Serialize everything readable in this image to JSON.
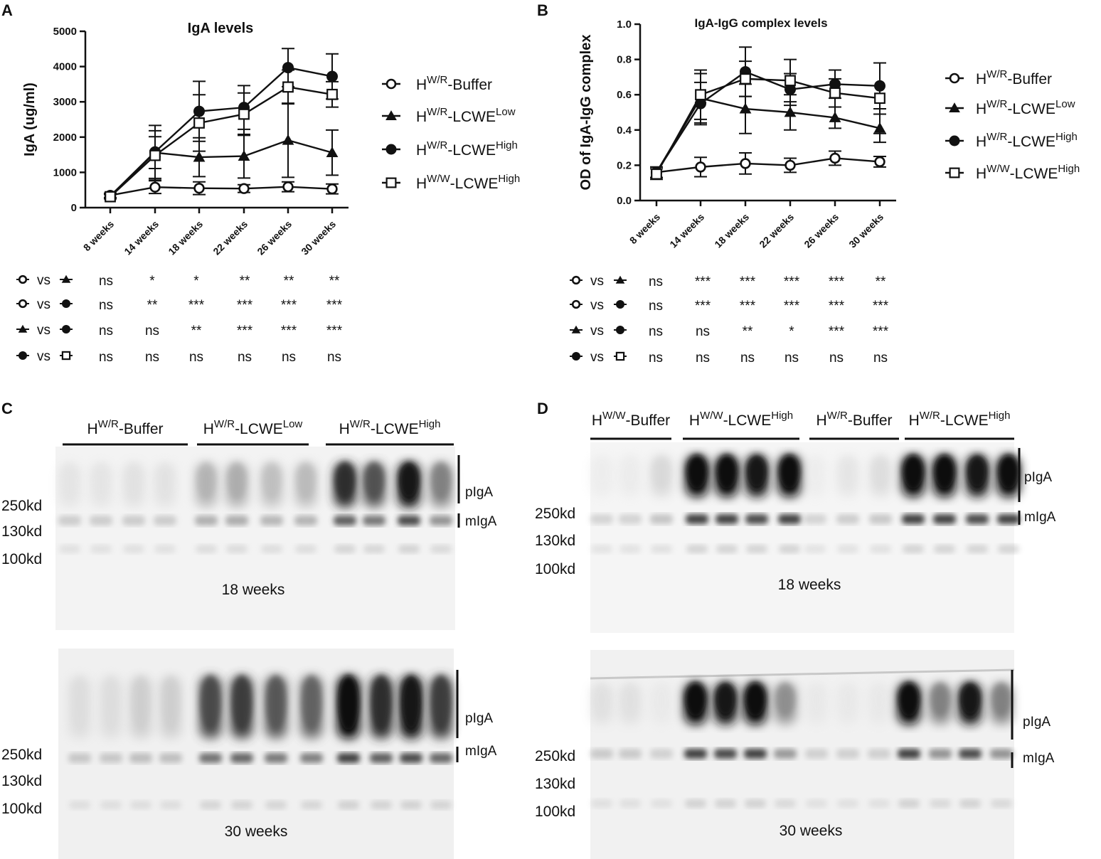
{
  "panels": {
    "A": {
      "letter": "A"
    },
    "B": {
      "letter": "B"
    },
    "C": {
      "letter": "C"
    },
    "D": {
      "letter": "D"
    }
  },
  "chart_data": [
    {
      "id": "A",
      "type": "line",
      "title": "IgA levels",
      "ylabel": "IgA (ug/ml)",
      "xlabel": "",
      "categories": [
        "8 weeks",
        "14 weeks",
        "18 weeks",
        "22 weeks",
        "26 weeks",
        "30 weeks"
      ],
      "ylim": [
        0,
        5000
      ],
      "yticks": [
        "0",
        "1000",
        "2000",
        "3000",
        "4000",
        "5000"
      ],
      "ytick_values": [
        0,
        1000,
        2000,
        3000,
        4000,
        5000
      ],
      "grid": false,
      "legend_position": "right",
      "series": [
        {
          "legend_base": "H",
          "legend_sup1": "W/R",
          "legend_mid": "-Buffer",
          "legend_sup2": "",
          "marker": "open-circle",
          "values": [
            350,
            580,
            550,
            540,
            590,
            530
          ],
          "errors": [
            60,
            180,
            180,
            110,
            140,
            140
          ]
        },
        {
          "legend_base": "H",
          "legend_sup1": "W/R",
          "legend_mid": "-LCWE",
          "legend_sup2": "Low",
          "marker": "filled-triangle",
          "values": [
            330,
            1560,
            1430,
            1460,
            1910,
            1560
          ],
          "errors": [
            60,
            450,
            550,
            620,
            1050,
            640
          ]
        },
        {
          "legend_base": "H",
          "legend_sup1": "W/R",
          "legend_mid": "-LCWE",
          "legend_sup2": "High",
          "marker": "filled-circle",
          "values": [
            330,
            1580,
            2730,
            2840,
            3970,
            3720
          ],
          "errors": [
            60,
            750,
            850,
            620,
            540,
            640
          ]
        },
        {
          "legend_base": "H",
          "legend_sup1": "W/W",
          "legend_mid": "-LCWE",
          "legend_sup2": "High",
          "marker": "open-square",
          "values": [
            310,
            1480,
            2400,
            2650,
            3420,
            3210
          ],
          "errors": [
            60,
            700,
            800,
            600,
            480,
            360
          ]
        }
      ],
      "comparisons": [
        {
          "a": "open-circle",
          "b": "filled-triangle",
          "vs": "vs",
          "sig": [
            "ns",
            "*",
            "*",
            "**",
            "**",
            "**"
          ]
        },
        {
          "a": "open-circle",
          "b": "filled-circle",
          "vs": "vs",
          "sig": [
            "ns",
            "**",
            "***",
            "***",
            "***",
            "***"
          ]
        },
        {
          "a": "filled-triangle",
          "b": "filled-circle",
          "vs": "vs",
          "sig": [
            "ns",
            "ns",
            "**",
            "***",
            "***",
            "***"
          ]
        },
        {
          "a": "filled-circle",
          "b": "open-square",
          "vs": "vs",
          "sig": [
            "ns",
            "ns",
            "ns",
            "ns",
            "ns",
            "ns"
          ]
        }
      ]
    },
    {
      "id": "B",
      "type": "line",
      "title": "IgA-IgG complex levels",
      "ylabel": "OD of IgA-IgG complex",
      "xlabel": "",
      "categories": [
        "8 weeks",
        "14 weeks",
        "18 weeks",
        "22 weeks",
        "26 weeks",
        "30 weeks"
      ],
      "ylim": [
        0,
        1.0
      ],
      "yticks": [
        "0.0",
        "0.2",
        "0.4",
        "0.6",
        "0.8",
        "1.0"
      ],
      "ytick_values": [
        0,
        0.2,
        0.4,
        0.6,
        0.8,
        1.0
      ],
      "grid": false,
      "legend_position": "right",
      "series": [
        {
          "legend_base": "H",
          "legend_sup1": "W/R",
          "legend_mid": "-Buffer",
          "legend_sup2": "",
          "marker": "open-circle",
          "values": [
            0.16,
            0.19,
            0.21,
            0.2,
            0.24,
            0.22
          ],
          "errors": [
            0.03,
            0.055,
            0.06,
            0.04,
            0.04,
            0.03
          ]
        },
        {
          "legend_base": "H",
          "legend_sup1": "W/R",
          "legend_mid": "-LCWE",
          "legend_sup2": "Low",
          "marker": "filled-triangle",
          "values": [
            0.16,
            0.58,
            0.52,
            0.5,
            0.47,
            0.41
          ],
          "errors": [
            0.03,
            0.14,
            0.14,
            0.1,
            0.06,
            0.08
          ]
        },
        {
          "legend_base": "H",
          "legend_sup1": "W/R",
          "legend_mid": "-LCWE",
          "legend_sup2": "High",
          "marker": "filled-circle",
          "values": [
            0.16,
            0.55,
            0.73,
            0.63,
            0.66,
            0.65
          ],
          "errors": [
            0.03,
            0.12,
            0.14,
            0.09,
            0.08,
            0.13
          ]
        },
        {
          "legend_base": "H",
          "legend_sup1": "W/W",
          "legend_mid": "-LCWE",
          "legend_sup2": "High",
          "marker": "open-square",
          "values": [
            0.15,
            0.6,
            0.69,
            0.68,
            0.61,
            0.58
          ],
          "errors": [
            0.03,
            0.14,
            0.1,
            0.12,
            0.08,
            0.2
          ]
        }
      ],
      "comparisons": [
        {
          "a": "open-circle",
          "b": "filled-triangle",
          "vs": "vs",
          "sig": [
            "ns",
            "***",
            "***",
            "***",
            "***",
            "**"
          ]
        },
        {
          "a": "open-circle",
          "b": "filled-circle",
          "vs": "vs",
          "sig": [
            "ns",
            "***",
            "***",
            "***",
            "***",
            "***"
          ]
        },
        {
          "a": "filled-triangle",
          "b": "filled-circle",
          "vs": "vs",
          "sig": [
            "ns",
            "ns",
            "**",
            "*",
            "***",
            "***"
          ]
        },
        {
          "a": "filled-circle",
          "b": "open-square",
          "vs": "vs",
          "sig": [
            "ns",
            "ns",
            "ns",
            "ns",
            "ns",
            "ns"
          ]
        }
      ]
    }
  ],
  "blots": {
    "C": {
      "groups": [
        {
          "base": "H",
          "sup1": "W/R",
          "mid": "-Buffer",
          "sup2": ""
        },
        {
          "base": "H",
          "sup1": "W/R",
          "mid": "-LCWE",
          "sup2": "Low"
        },
        {
          "base": "H",
          "sup1": "W/R",
          "mid": "-LCWE",
          "sup2": "High"
        }
      ],
      "markers": [
        "250kd",
        "130kd",
        "100kd"
      ],
      "band_labels": [
        "pIgA",
        "mIgA"
      ],
      "timepoints": [
        "18 weeks",
        "30 weeks"
      ],
      "intensity_18": [
        0.1,
        0.1,
        0.12,
        0.11,
        0.35,
        0.38,
        0.3,
        0.32,
        0.85,
        0.72,
        0.95,
        0.55
      ],
      "intensity_30": [
        0.14,
        0.14,
        0.22,
        0.22,
        0.75,
        0.8,
        0.7,
        0.66,
        1.0,
        0.85,
        0.95,
        0.8
      ]
    },
    "D": {
      "groups": [
        {
          "base": "H",
          "sup1": "W/W",
          "mid": "-Buffer",
          "sup2": ""
        },
        {
          "base": "H",
          "sup1": "W/W",
          "mid": "-LCWE",
          "sup2": "High"
        },
        {
          "base": "H",
          "sup1": "W/R",
          "mid": "-Buffer",
          "sup2": ""
        },
        {
          "base": "H",
          "sup1": "W/R",
          "mid": "-LCWE",
          "sup2": "High"
        }
      ],
      "markers": [
        "250kd",
        "130kd",
        "100kd"
      ],
      "band_labels": [
        "pIgA",
        "mIgA"
      ],
      "timepoints": [
        "18 weeks",
        "30 weeks"
      ],
      "intensity_18": [
        0.04,
        0.05,
        0.18,
        1.0,
        1.0,
        0.95,
        1.0,
        0.04,
        0.1,
        0.15,
        1.0,
        1.0,
        0.95,
        1.0
      ],
      "intensity_30": [
        0.12,
        0.12,
        0.05,
        1.0,
        0.95,
        1.0,
        0.5,
        0.06,
        0.06,
        0.06,
        1.0,
        0.55,
        0.95,
        0.55
      ]
    }
  }
}
